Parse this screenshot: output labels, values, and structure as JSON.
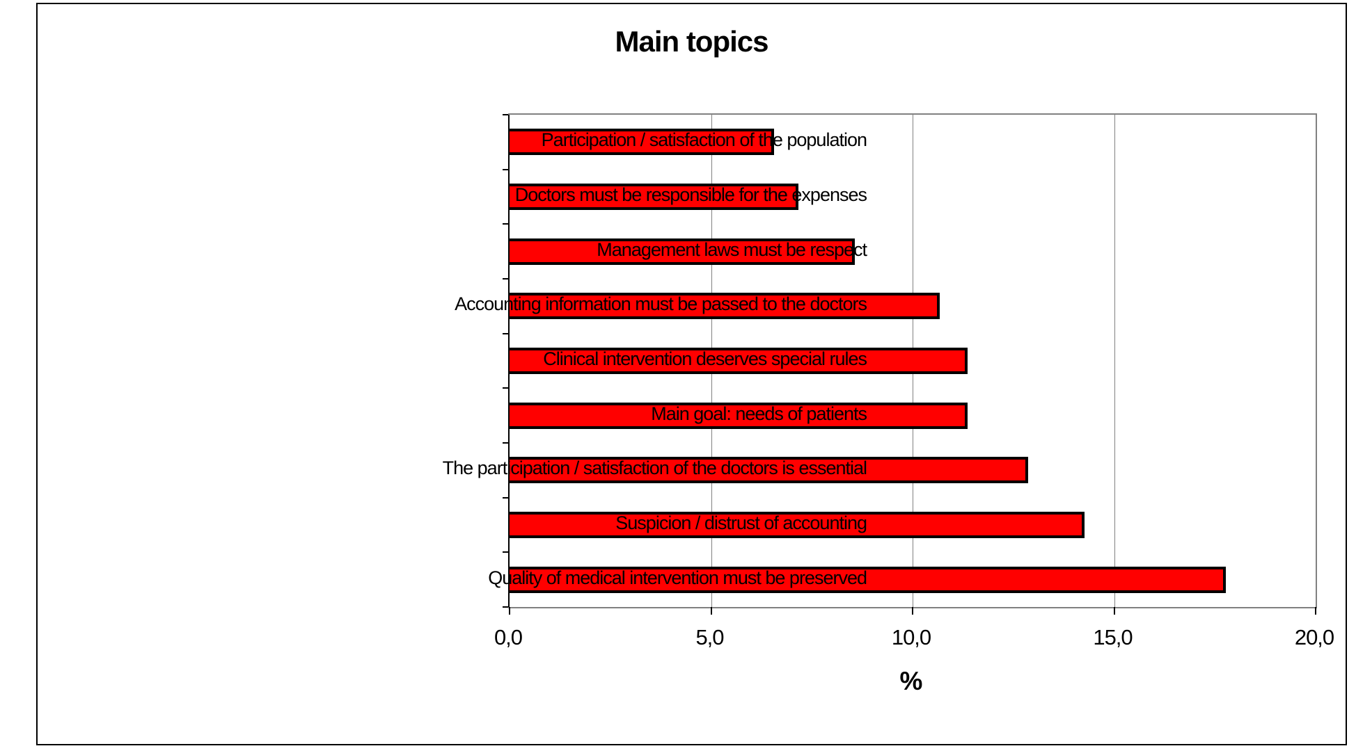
{
  "chart_data": {
    "type": "bar",
    "orientation": "horizontal",
    "title": "Main topics",
    "xlabel": "%",
    "categories": [
      "Participation / satisfaction of the population",
      "Doctors must be responsible for the expenses",
      "Management laws must be respect",
      "Accounting information must be passed to the doctors",
      "Clinical intervention deserves special rules",
      "Main goal: needs of patients",
      "The participation / satisfaction of the doctors is essential",
      "Suspicion / distrust of accounting",
      "Quality of medical intervention must be preserved"
    ],
    "values": [
      6.5,
      7.1,
      8.5,
      10.6,
      11.3,
      11.3,
      12.8,
      14.2,
      17.7
    ],
    "xlim": [
      0,
      20
    ],
    "x_ticks": [
      {
        "value": 0,
        "label": "0,0"
      },
      {
        "value": 5,
        "label": "5,0"
      },
      {
        "value": 10,
        "label": "10,0"
      },
      {
        "value": 15,
        "label": "15,0"
      },
      {
        "value": 20,
        "label": "20,0"
      }
    ],
    "grid": true,
    "legend": false,
    "bar_color": "#ff0000",
    "bar_border_color": "#000000",
    "plot_border_color": "#808080",
    "gridline_color": "#808080",
    "frame_border_color": "#000000"
  }
}
